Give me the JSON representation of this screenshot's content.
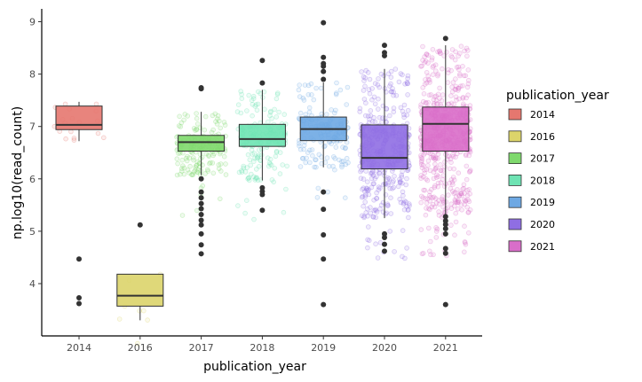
{
  "chart_data": {
    "type": "boxplot",
    "xlabel": "publication_year",
    "ylabel": "np.log10(read_count)",
    "ylim": [
      3.0,
      9.3
    ],
    "yticks": [
      4,
      5,
      6,
      7,
      8,
      9
    ],
    "grid": false,
    "legend": {
      "title": "publication_year",
      "placement": "right"
    },
    "categories": [
      "2014",
      "2016",
      "2017",
      "2018",
      "2019",
      "2020",
      "2021"
    ],
    "colors": [
      "#e5776f",
      "#dcd46a",
      "#7fd96d",
      "#6ee3b3",
      "#6ea8e3",
      "#8f6ee3",
      "#d96ec9"
    ],
    "boxes": [
      {
        "year": "2014",
        "q1": 6.94,
        "median": 7.03,
        "q3": 7.39,
        "whisker_low": 6.72,
        "whisker_high": 7.47,
        "outliers": [
          4.47,
          3.73,
          3.62
        ]
      },
      {
        "year": "2016",
        "q1": 3.57,
        "median": 3.77,
        "q3": 4.18,
        "whisker_low": 3.3,
        "whisker_high": 4.18,
        "outliers": [
          5.12
        ]
      },
      {
        "year": "2017",
        "q1": 6.53,
        "median": 6.7,
        "q3": 6.83,
        "whisker_low": 6.07,
        "whisker_high": 7.28,
        "outliers": [
          7.72,
          7.74,
          6.0,
          5.75,
          5.64,
          5.53,
          5.43,
          5.32,
          5.21,
          5.12,
          4.95,
          4.74,
          4.57
        ]
      },
      {
        "year": "2018",
        "q1": 6.62,
        "median": 6.76,
        "q3": 7.04,
        "whisker_low": 5.97,
        "whisker_high": 7.7,
        "outliers": [
          8.26,
          7.83,
          5.83,
          5.76,
          5.7,
          5.4
        ]
      },
      {
        "year": "2019",
        "q1": 6.73,
        "median": 6.95,
        "q3": 7.18,
        "whisker_low": 6.22,
        "whisker_high": 7.84,
        "outliers": [
          8.98,
          8.32,
          8.2,
          8.15,
          8.05,
          7.9,
          5.75,
          5.42,
          4.93,
          4.47,
          3.6
        ]
      },
      {
        "year": "2020",
        "q1": 6.19,
        "median": 6.4,
        "q3": 7.03,
        "whisker_low": 5.25,
        "whisker_high": 8.1,
        "outliers": [
          8.55,
          8.41,
          8.35,
          4.95,
          4.88,
          4.75,
          4.62
        ]
      },
      {
        "year": "2021",
        "q1": 6.53,
        "median": 7.05,
        "q3": 7.37,
        "whisker_low": 5.3,
        "whisker_high": 8.55,
        "outliers": [
          8.68,
          5.28,
          5.2,
          5.13,
          5.05,
          4.95,
          4.67,
          4.58,
          3.6
        ]
      }
    ],
    "jitter_counts": [
      18,
      8,
      180,
      180,
      170,
      400,
      600
    ]
  }
}
